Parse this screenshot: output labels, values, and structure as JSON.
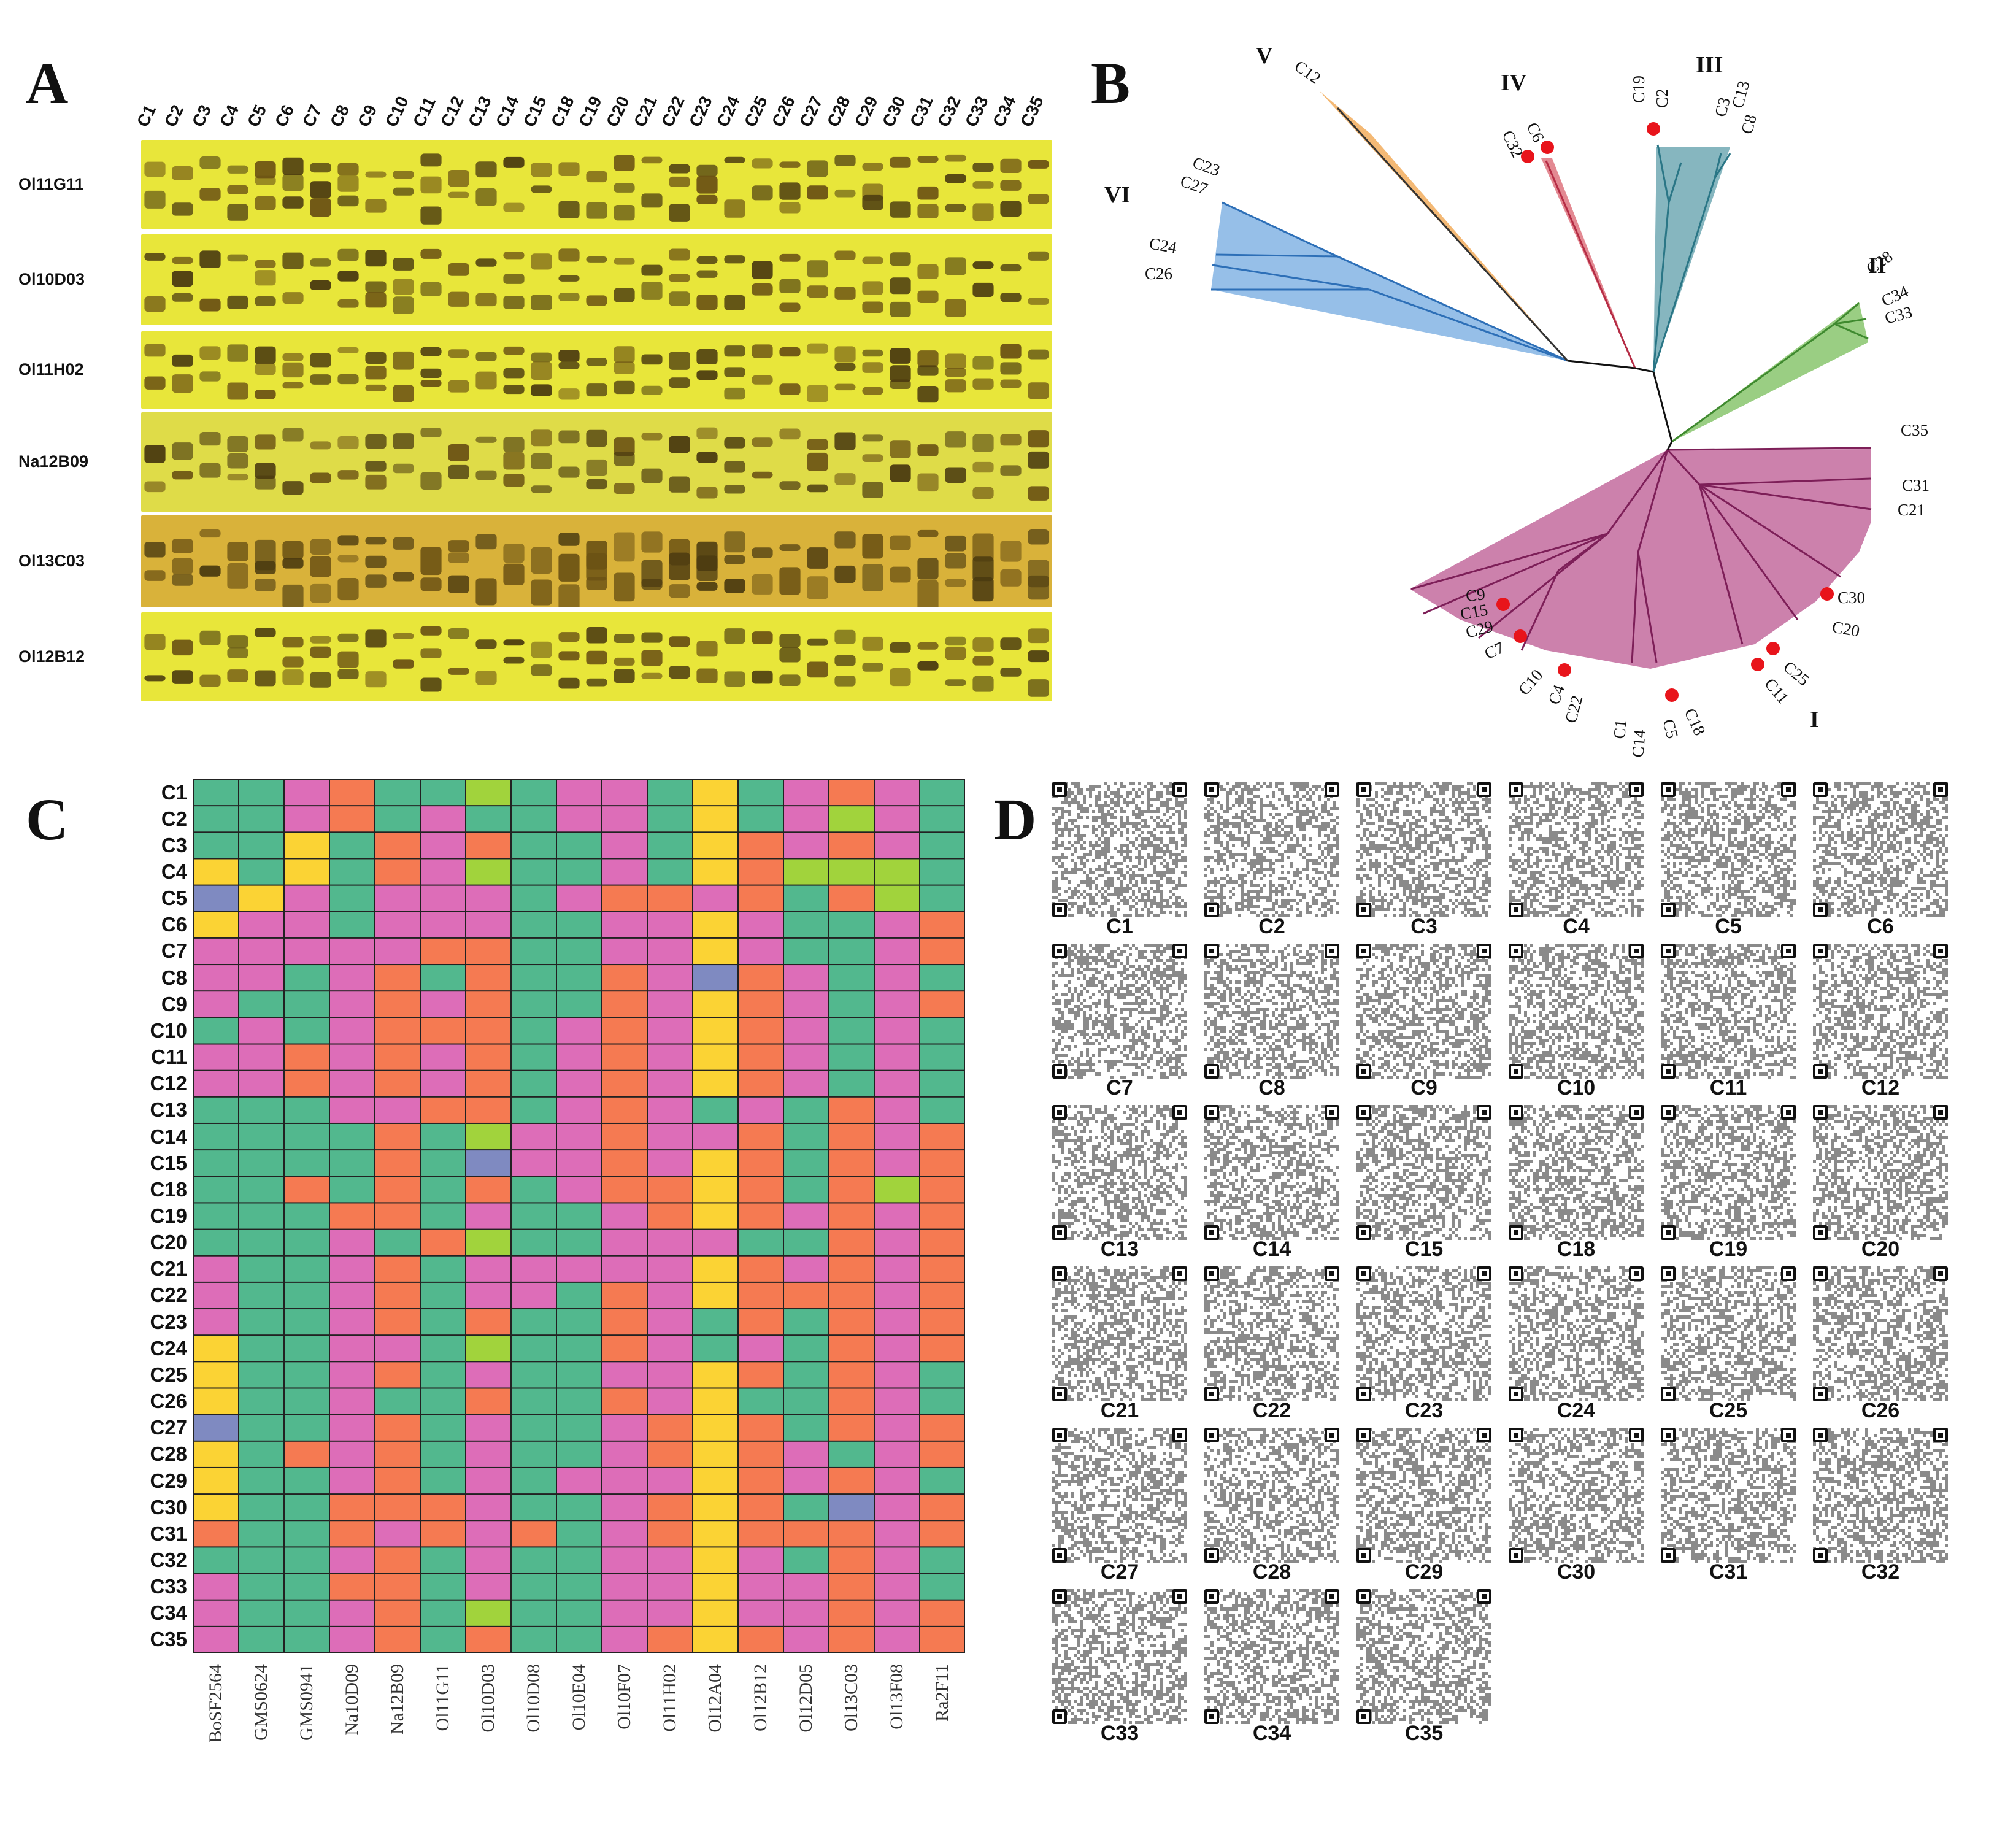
{
  "panels": {
    "a": "A",
    "b": "B",
    "c": "C",
    "d": "D"
  },
  "samples": [
    "C1",
    "C2",
    "C3",
    "C4",
    "C5",
    "C6",
    "C7",
    "C8",
    "C9",
    "C10",
    "C11",
    "C12",
    "C13",
    "C14",
    "C15",
    "C18",
    "C19",
    "C20",
    "C21",
    "C22",
    "C23",
    "C24",
    "C25",
    "C26",
    "C27",
    "C28",
    "C29",
    "C30",
    "C31",
    "C32",
    "C33",
    "C34",
    "C35"
  ],
  "gel_markers": [
    "Ol11G11",
    "Ol10D03",
    "Ol11H02",
    "Na12B09",
    "Ol13C03",
    "Ol12B12"
  ],
  "tree": {
    "clusters": [
      {
        "id": "I",
        "members": [
          "C1",
          "C4",
          "C5",
          "C7",
          "C9",
          "C10",
          "C11",
          "C14",
          "C15",
          "C18",
          "C20",
          "C21",
          "C22",
          "C25",
          "C29",
          "C30",
          "C31",
          "C35"
        ],
        "color": "#c97aa8"
      },
      {
        "id": "II",
        "members": [
          "C28",
          "C34",
          "C33"
        ],
        "color": "#8fc975"
      },
      {
        "id": "III",
        "members": [
          "C19",
          "C2",
          "C3",
          "C13",
          "C8"
        ],
        "color": "#79aeb8"
      },
      {
        "id": "IV",
        "members": [
          "C32",
          "C6"
        ],
        "color": "#e0848c"
      },
      {
        "id": "V",
        "members": [
          "C12"
        ],
        "color": "#f1b36e"
      },
      {
        "id": "VI",
        "members": [
          "C23",
          "C27",
          "C24",
          "C26"
        ],
        "color": "#8bb8e6"
      }
    ],
    "highlighted": [
      "C32",
      "C6",
      "C19",
      "C9",
      "C15",
      "C29",
      "C7",
      "C10",
      "C4",
      "C22",
      "C18",
      "C5",
      "C11",
      "C25",
      "C30"
    ],
    "highlight_color": "#e8141b"
  },
  "heatmap": {
    "markers": [
      "BoSF2564",
      "GMS0624",
      "GMS0941",
      "Na10D09",
      "Na12B09",
      "Ol11G11",
      "Ol10D03",
      "Ol10D08",
      "Ol10E04",
      "Ol10F07",
      "Ol11H02",
      "Ol12A04",
      "Ol12B12",
      "Ol12D05",
      "Ol13C03",
      "Ol13F08",
      "Ra2F11"
    ],
    "palette": {
      "G": "#52b88e",
      "P": "#dd6db8",
      "O": "#f57a52",
      "Y": "#fbd334",
      "L": "#a1d33c",
      "B": "#7f8ac1"
    },
    "rows": [
      "GGPOGGLGPPGYGPOPG",
      "GGPOGPGGPPGYGPLPG",
      "GGYGOPOGGPGYOPOPG",
      "YGYGOPLGGPGYOLLLG",
      "BYPGPPPGPOOPOGOLG",
      "YPPGPPPGGPPYPGGPO",
      "PPPPPOOGGPPYPGGPO",
      "PPGPOGOGGOPBOPGPG",
      "PGGPOPOGGOPYOPGPO",
      "GPGPOOOGPOPYOPGPG",
      "PPOPOPOGPOPYOPGPG",
      "PPOPOPOGPOPYOPGPG",
      "GGGPPOOGPOPGPGOPG",
      "GGGGOGLPPOPPOGOPO",
      "GGGGOGBPPOPYOGOPO",
      "GGOGOGOGPOOYOGOLO",
      "GGGOOGPGGPOYOPOPO",
      "GGGPGOLGGPPPGGOPO",
      "PGGPOGPPPPPYOPOPO",
      "PGGPOGPPGOPYOOOPO",
      "PGGPOGOGGOPGOGOPO",
      "YGGPPGLGGOPGPGOPO",
      "YGGPOGPGGPPYOGOPG",
      "YGGPGGOGGOPYGGOPG",
      "BGGPOGPGGPOYOGOPO",
      "YGOPOGPGGPOYOPGPO",
      "YGGPOGPGPPPYOPOPG",
      "YGGOOOPGGPOYOGBPO",
      "OGGOPOPOGPOYOOOPO",
      "GGGPOGPGGPPYPGOPG",
      "PGGOOGPGGPPYPPOPG",
      "PGGPOGLGGPPYPPOPO",
      "PGGPOGOGGPOYOPOPO"
    ]
  }
}
